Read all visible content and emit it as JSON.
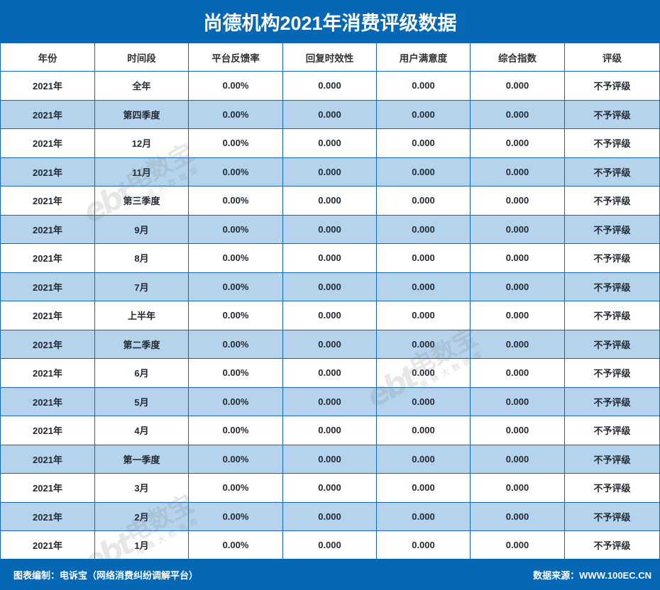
{
  "title": "尚德机构2021年消费评级数据",
  "table": {
    "headers": [
      "年份",
      "时间段",
      "平台反馈率",
      "回复时效性",
      "用户满意度",
      "综合指数",
      "评级"
    ],
    "rows": [
      [
        "2021年",
        "全年",
        "0.00%",
        "0.000",
        "0.000",
        "0.000",
        "不予评级"
      ],
      [
        "2021年",
        "第四季度",
        "0.00%",
        "0.000",
        "0.000",
        "0.000",
        "不予评级"
      ],
      [
        "2021年",
        "12月",
        "0.00%",
        "0.000",
        "0.000",
        "0.000",
        "不予评级"
      ],
      [
        "2021年",
        "11月",
        "0.00%",
        "0.000",
        "0.000",
        "0.000",
        "不予评级"
      ],
      [
        "2021年",
        "第三季度",
        "0.00%",
        "0.000",
        "0.000",
        "0.000",
        "不予评级"
      ],
      [
        "2021年",
        "9月",
        "0.00%",
        "0.000",
        "0.000",
        "0.000",
        "不予评级"
      ],
      [
        "2021年",
        "8月",
        "0.00%",
        "0.000",
        "0.000",
        "0.000",
        "不予评级"
      ],
      [
        "2021年",
        "7月",
        "0.00%",
        "0.000",
        "0.000",
        "0.000",
        "不予评级"
      ],
      [
        "2021年",
        "上半年",
        "0.00%",
        "0.000",
        "0.000",
        "0.000",
        "不予评级"
      ],
      [
        "2021年",
        "第二季度",
        "0.00%",
        "0.000",
        "0.000",
        "0.000",
        "不予评级"
      ],
      [
        "2021年",
        "6月",
        "0.00%",
        "0.000",
        "0.000",
        "0.000",
        "不予评级"
      ],
      [
        "2021年",
        "5月",
        "0.00%",
        "0.000",
        "0.000",
        "0.000",
        "不予评级"
      ],
      [
        "2021年",
        "4月",
        "0.00%",
        "0.000",
        "0.000",
        "0.000",
        "不予评级"
      ],
      [
        "2021年",
        "第一季度",
        "0.00%",
        "0.000",
        "0.000",
        "0.000",
        "不予评级"
      ],
      [
        "2021年",
        "3月",
        "0.00%",
        "0.000",
        "0.000",
        "0.000",
        "不予评级"
      ],
      [
        "2021年",
        "2月",
        "0.00%",
        "0.000",
        "0.000",
        "0.000",
        "不予评级"
      ],
      [
        "2021年",
        "1月",
        "0.00%",
        "0.000",
        "0.000",
        "0.000",
        "不予评级"
      ]
    ]
  },
  "footer": {
    "left": "图表编制：电诉宝（网络消费纠纷调解平台）",
    "right": "数据来源：WWW.100EC.CN"
  },
  "watermark": {
    "logo": "ebt",
    "main": "电数宝",
    "sub": "电商大数据库"
  },
  "colors": {
    "brand_blue": "#0667b4",
    "alt_row": "#b5d3ec",
    "border": "#1565b0"
  }
}
